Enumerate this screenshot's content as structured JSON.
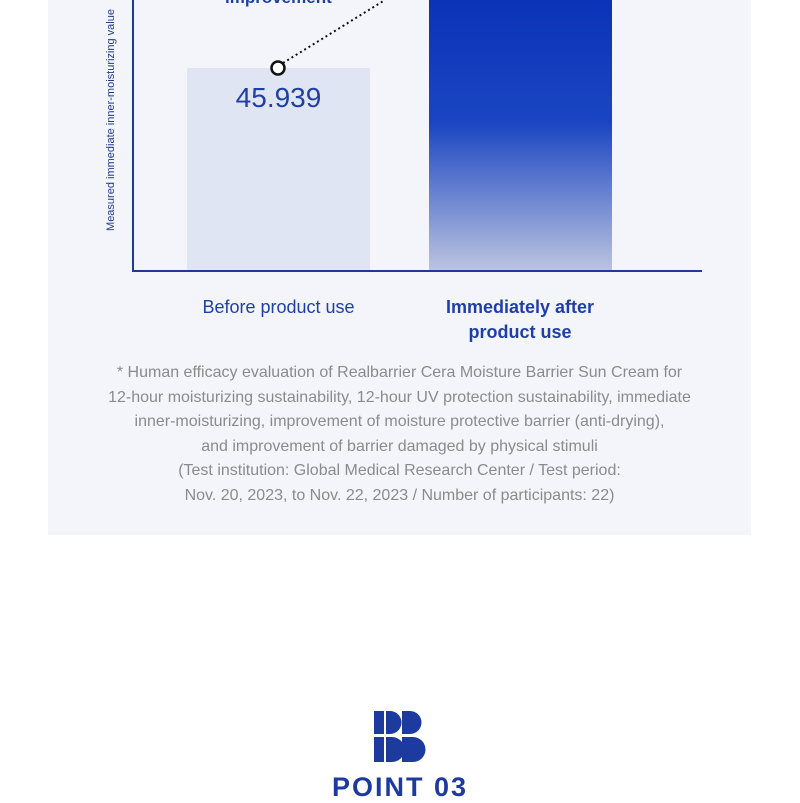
{
  "chart_data": {
    "type": "bar",
    "ylabel": "Measured immediate inner-moisturizing value",
    "categories": [
      "Before product use",
      "Immediately after product use"
    ],
    "values": [
      45.939,
      null
    ],
    "annotation": "improvement",
    "colors": {
      "before_bar": "#e0e5f3",
      "after_bar_top": "#0a33b7",
      "after_bar_bottom": "#bcc4df",
      "axis": "#1f3a8f",
      "value_text": "#1f3fa8"
    }
  },
  "labels": {
    "before_value": "45.939",
    "category_before": "Before product use",
    "category_after_line1": "Immediately after",
    "category_after_line2": "product use"
  },
  "footnote": {
    "lines": [
      "* Human efficacy evaluation of Realbarrier Cera Moisture Barrier Sun Cream for",
      "12-hour moisturizing sustainability, 12-hour UV protection sustainability, immediate",
      "inner-moisturizing, improvement of moisture protective barrier (anti-drying),",
      "and improvement of barrier damaged by physical stimuli",
      "(Test institution: Global Medical Research Center / Test period:",
      "Nov. 20, 2023, to Nov. 22, 2023 / Number of participants: 22)"
    ]
  },
  "section": {
    "logo_icon": "rb-logo-icon",
    "title": "POINT 03"
  }
}
